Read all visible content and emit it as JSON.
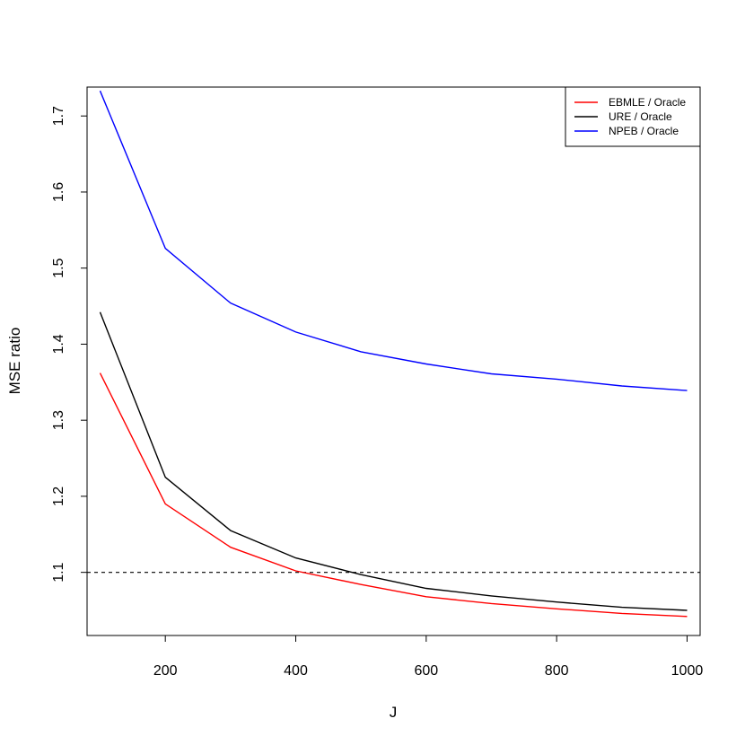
{
  "chart_data": {
    "type": "line",
    "xlabel": "J",
    "ylabel": "MSE ratio",
    "xlim": [
      80,
      1020
    ],
    "ylim": [
      1.017,
      1.738
    ],
    "x": [
      100,
      200,
      300,
      400,
      500,
      600,
      700,
      800,
      900,
      1000
    ],
    "xticks": [
      200,
      400,
      600,
      800,
      1000
    ],
    "yticks": [
      1.1,
      1.2,
      1.3,
      1.4,
      1.5,
      1.6,
      1.7
    ],
    "reference_line": {
      "y": 1.1,
      "style": "dashed",
      "color": "#000000"
    },
    "legend_position": "top-right",
    "series": [
      {
        "name": "EBMLE / Oracle",
        "color": "#ff0000",
        "values": [
          1.362,
          1.19,
          1.133,
          1.102,
          1.084,
          1.068,
          1.059,
          1.052,
          1.046,
          1.042
        ]
      },
      {
        "name": "URE / Oracle",
        "color": "#000000",
        "values": [
          1.442,
          1.225,
          1.155,
          1.119,
          1.097,
          1.079,
          1.069,
          1.061,
          1.054,
          1.05
        ]
      },
      {
        "name": "NPEB / Oracle",
        "color": "#0000ff",
        "values": [
          1.733,
          1.526,
          1.454,
          1.416,
          1.39,
          1.374,
          1.361,
          1.354,
          1.345,
          1.339
        ]
      }
    ]
  }
}
